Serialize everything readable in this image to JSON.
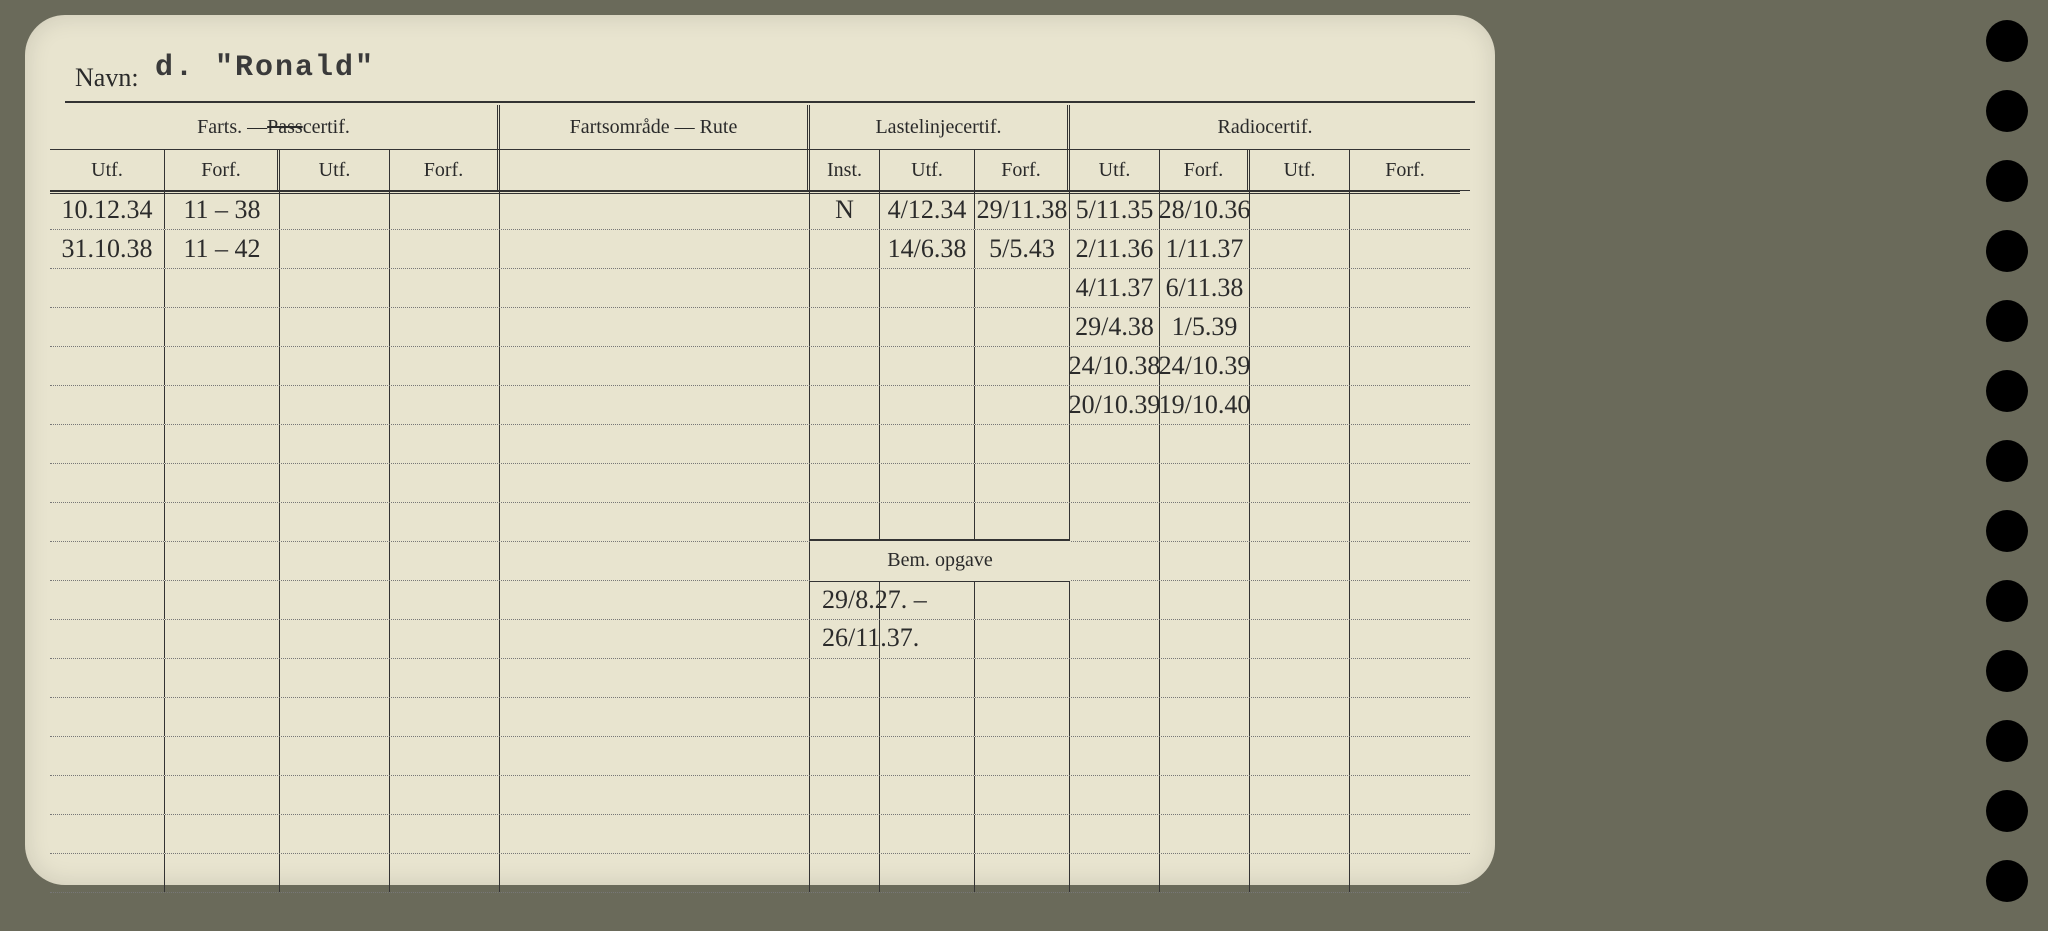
{
  "card": {
    "background": "#e8e4cf",
    "navn_label": "Navn:",
    "navn_value": "d. \"Ronald\""
  },
  "columns": {
    "farts_pass_group": "Farts. — ",
    "farts_pass_struck": "Pass",
    "farts_pass_suffix": "certif.",
    "fartsomrade": "Fartsområde — Rute",
    "lastelinje": "Lastelinjecertif.",
    "radio": "Radiocertif.",
    "utf": "Utf.",
    "forf": "Forf.",
    "inst": "Inst."
  },
  "widths": {
    "col_utf1": 115,
    "col_forf1": 115,
    "col_utf2": 110,
    "col_forf2": 110,
    "col_fartsomrade": 310,
    "col_inst": 70,
    "col_laste_utf": 95,
    "col_laste_forf": 95,
    "col_radio_utf1": 90,
    "col_radio_forf1": 90,
    "col_radio_utf2": 100,
    "col_radio_forf2": 110
  },
  "farts_rows": [
    {
      "utf": "10.12.34",
      "forf": "11 – 38"
    },
    {
      "utf": "31.10.38",
      "forf": "11 – 42"
    }
  ],
  "laste_rows": [
    {
      "inst": "N",
      "utf": "4/12.34",
      "forf": "29/11.38"
    },
    {
      "inst": "",
      "utf": "14/6.38",
      "forf": "5/5.43"
    }
  ],
  "radio_rows": [
    {
      "utf": "5/11.35",
      "forf": "28/10.36"
    },
    {
      "utf": "2/11.36",
      "forf": "1/11.37"
    },
    {
      "utf": "4/11.37",
      "forf": "6/11.38"
    },
    {
      "utf": "29/4.38",
      "forf": "1/5.39"
    },
    {
      "utf": "24/10.38",
      "forf": "24/10.39"
    },
    {
      "utf": "20/10.39",
      "forf": "19/10.40"
    }
  ],
  "bem": {
    "header": "Bem. opgave",
    "line1": "29/8.27. –",
    "line2": "26/11.37."
  },
  "num_body_rows": 18,
  "punch_holes": 13
}
